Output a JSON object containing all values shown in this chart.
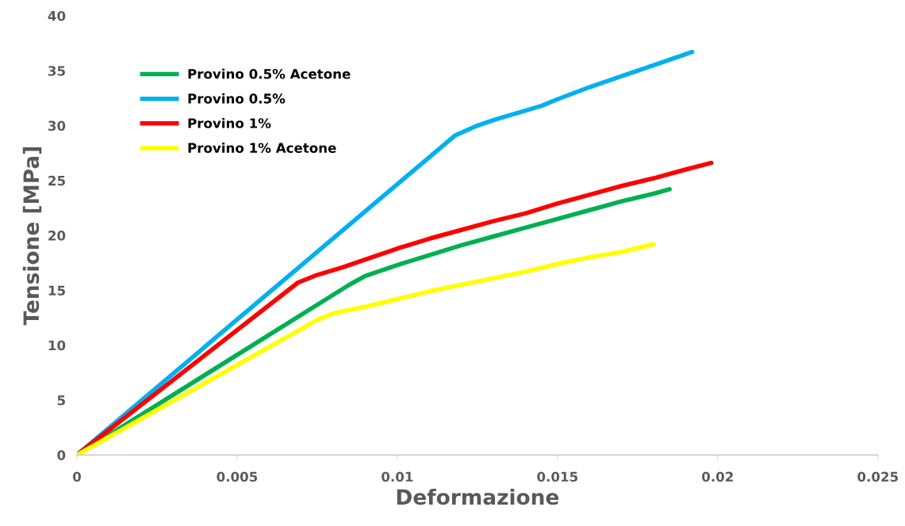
{
  "chart_data": {
    "type": "line",
    "xlabel": "Deformazione",
    "ylabel": "Tensione [MPa]",
    "xlim": [
      0,
      0.025
    ],
    "xticks": [
      0,
      0.005,
      0.01,
      0.015,
      0.02,
      0.025
    ],
    "ylim": [
      0,
      40
    ],
    "yticks": [
      0,
      5,
      10,
      15,
      20,
      25,
      30,
      35,
      40
    ],
    "grid": false,
    "legend": "top left",
    "marker": "none",
    "line_style": "solid",
    "series": [
      {
        "name": "Provino 0.5% Acetone",
        "color": "#00b050",
        "x": [
          0,
          0.0085,
          0.009,
          0.01,
          0.011,
          0.012,
          0.013,
          0.014,
          0.015,
          0.016,
          0.017,
          0.018,
          0.0185
        ],
        "values": [
          0,
          15.5,
          16.3,
          17.3,
          18.2,
          19.1,
          19.9,
          20.7,
          21.5,
          22.3,
          23.1,
          23.8,
          24.2
        ]
      },
      {
        "name": "Provino 0.5%",
        "color": "#00b0f0",
        "x": [
          0,
          0.0118,
          0.0125,
          0.013,
          0.0145,
          0.015,
          0.016,
          0.017,
          0.018,
          0.0192
        ],
        "values": [
          0,
          29.1,
          30.0,
          30.5,
          31.8,
          32.4,
          33.5,
          34.5,
          35.5,
          36.7
        ]
      },
      {
        "name": "Provino 1%",
        "color": "#ff0000",
        "x": [
          0,
          0.0069,
          0.0075,
          0.0083,
          0.009,
          0.01,
          0.011,
          0.012,
          0.013,
          0.014,
          0.015,
          0.016,
          0.017,
          0.018,
          0.019,
          0.0198
        ],
        "values": [
          0,
          15.7,
          16.4,
          17.1,
          17.8,
          18.8,
          19.7,
          20.5,
          21.3,
          22.0,
          22.9,
          23.7,
          24.5,
          25.2,
          26.0,
          26.6
        ]
      },
      {
        "name": "Provino 1% Acetone",
        "color": "#ffff00",
        "x": [
          0,
          0.0075,
          0.008,
          0.009,
          0.01,
          0.011,
          0.012,
          0.013,
          0.014,
          0.015,
          0.016,
          0.017,
          0.018
        ],
        "values": [
          0,
          12.3,
          12.9,
          13.5,
          14.2,
          14.9,
          15.5,
          16.1,
          16.7,
          17.4,
          18.0,
          18.5,
          19.2
        ]
      }
    ]
  }
}
